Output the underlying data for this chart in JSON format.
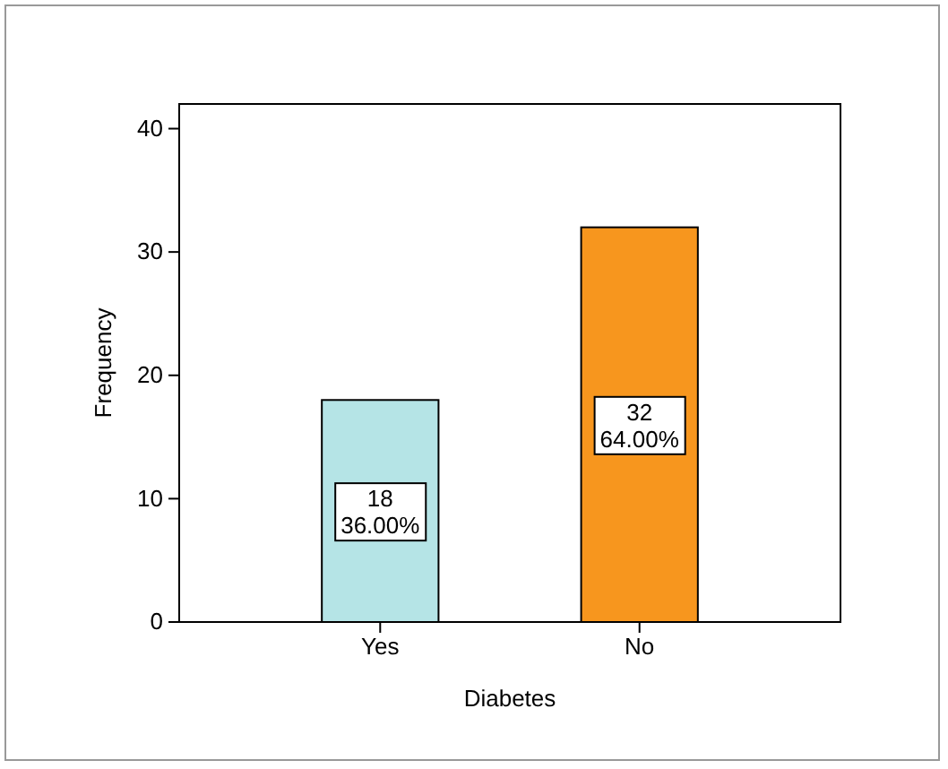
{
  "chart_data": {
    "type": "bar",
    "xlabel": "Diabetes",
    "ylabel": "Frequency",
    "categories": [
      "Yes",
      "No"
    ],
    "values": [
      18,
      32
    ],
    "colors": [
      "#b5e4e6",
      "#f7961e"
    ],
    "value_labels": [
      "18\n36.00%",
      "32\n64.00%"
    ],
    "ylim": [
      0,
      42
    ],
    "yticks": [
      0,
      10,
      20,
      30,
      40
    ]
  }
}
